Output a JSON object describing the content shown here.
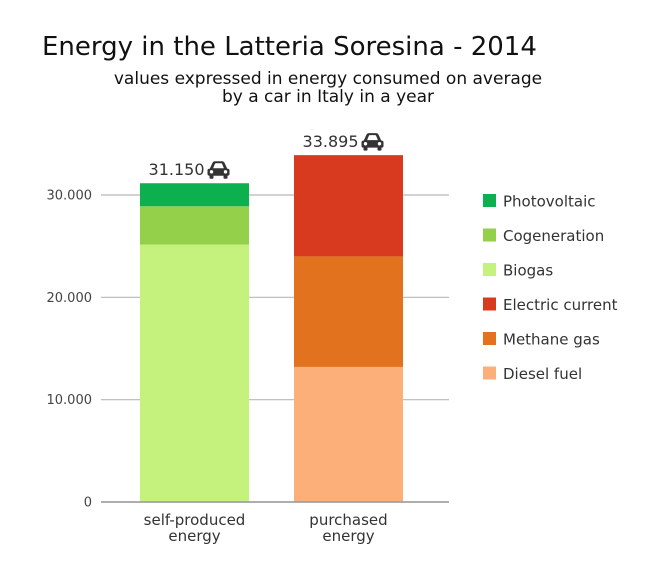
{
  "chart_data": {
    "type": "bar",
    "stacked": true,
    "title": "Energy in the Latteria Soresina - 2014",
    "subtitle_lines": [
      "values expressed in energy consumed on average",
      "by a car in Italy in a year"
    ],
    "categories": [
      {
        "lines": [
          "self-produced",
          "energy"
        ]
      },
      {
        "lines": [
          "purchased",
          "energy"
        ]
      }
    ],
    "totals": [
      {
        "label": "31.150",
        "icon": "car-icon"
      },
      {
        "label": "33.895",
        "icon": "car-icon"
      }
    ],
    "series": [
      {
        "name": "Biogas",
        "category_index": 0,
        "value": 25150,
        "color": "#c4f27c"
      },
      {
        "name": "Cogeneration",
        "category_index": 0,
        "value": 3750,
        "color": "#95d04a"
      },
      {
        "name": "Photovoltaic",
        "category_index": 0,
        "value": 2250,
        "color": "#0cb04f"
      },
      {
        "name": "Diesel fuel",
        "category_index": 1,
        "value": 13200,
        "color": "#fdaf79"
      },
      {
        "name": "Methane gas",
        "category_index": 1,
        "value": 10800,
        "color": "#e2721d"
      },
      {
        "name": "Electric current",
        "category_index": 1,
        "value": 9895,
        "color": "#d83a20"
      }
    ],
    "yticks": [
      {
        "value": 0,
        "label": "0"
      },
      {
        "value": 10000,
        "label": "10.000"
      },
      {
        "value": 20000,
        "label": "20.000"
      },
      {
        "value": 30000,
        "label": "30.000"
      }
    ],
    "ylim": [
      0,
      35000
    ],
    "grid": true,
    "legend": {
      "placement": "right",
      "entries": [
        {
          "name": "Photovoltaic",
          "color": "#0cb04f"
        },
        {
          "name": "Cogeneration",
          "color": "#95d04a"
        },
        {
          "name": "Biogas",
          "color": "#c4f27c"
        },
        {
          "name": "Electric current",
          "color": "#d83a20"
        },
        {
          "name": "Methane gas",
          "color": "#e2721d"
        },
        {
          "name": "Diesel fuel",
          "color": "#fdaf79"
        }
      ]
    }
  }
}
